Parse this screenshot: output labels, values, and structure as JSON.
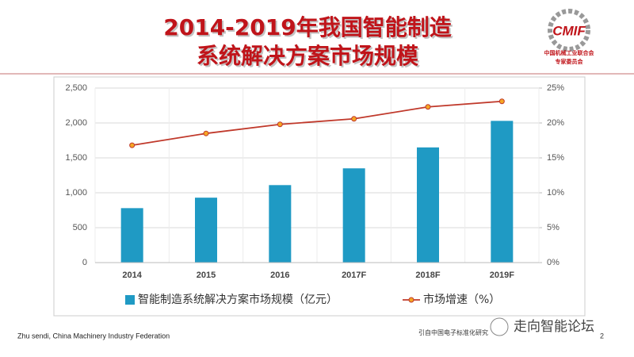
{
  "slide": {
    "title": [
      "2014-2019年我国智能制造",
      "系统解决方案市场规模"
    ],
    "logo": {
      "mark": "CMIF",
      "lines": [
        "中国机械工业联合会",
        "专家委员会"
      ]
    },
    "footer": "Zhu sendi, China Machinery Industry Federation",
    "source": "引自中国电子标准化研究",
    "watermark": "走向智能论坛",
    "page_number": "2"
  },
  "chart_data": {
    "type": "bar-line",
    "categories": [
      "2014",
      "2015",
      "2016",
      "2017F",
      "2018F",
      "2019F"
    ],
    "series": [
      {
        "name": "智能制造系统解决方案市场规模（亿元）",
        "type": "bar",
        "color": "#1f9ac4",
        "values": [
          780,
          930,
          1110,
          1350,
          1650,
          2030
        ]
      },
      {
        "name": "市场增速（%）",
        "type": "line",
        "axis": "y2",
        "color": "#c0392b",
        "marker_color": "#f5a623",
        "values": [
          16.8,
          18.5,
          19.8,
          20.6,
          22.3,
          23.1
        ]
      }
    ],
    "ylim": [
      0,
      2500
    ],
    "yticks": [
      0,
      500,
      {
        "value": 1000,
        "label": "1,000"
      },
      {
        "value": 1500,
        "label": "1,500"
      },
      {
        "value": 2000,
        "label": "2,000"
      },
      {
        "value": 2500,
        "label": "2,500"
      }
    ],
    "y2lim": [
      0,
      25
    ],
    "y2ticks": [
      {
        "value": 0,
        "label": "0%"
      },
      {
        "value": 5,
        "label": "5%"
      },
      {
        "value": 10,
        "label": "10%"
      },
      {
        "value": 15,
        "label": "15%"
      },
      {
        "value": 20,
        "label": "20%"
      },
      {
        "value": 25,
        "label": "25%"
      }
    ],
    "grid": true,
    "legend": "bottom"
  }
}
